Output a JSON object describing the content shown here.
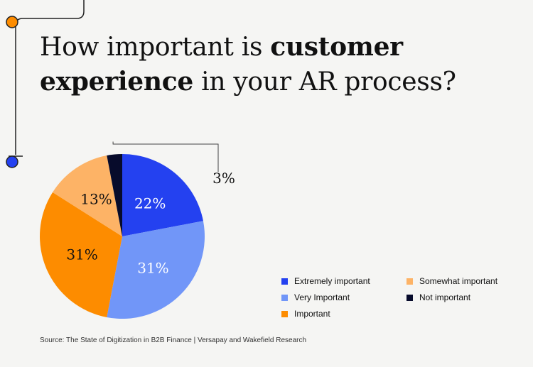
{
  "header": {
    "title_part1": "How important is",
    "title_bold1": "customer",
    "title_bold2": "experience",
    "title_part2": "in your AR process?"
  },
  "chart_data": {
    "type": "pie",
    "title": "How important is customer experience in your AR process?",
    "categories": [
      "Extremely important",
      "Very Important",
      "Important",
      "Somewhat important",
      "Not important"
    ],
    "values": [
      22,
      31,
      31,
      13,
      3
    ],
    "labels": [
      "22%",
      "31%",
      "31%",
      "13%",
      "3%"
    ],
    "colors": [
      "#2441f0",
      "#7196f8",
      "#fd8c00",
      "#fdb366",
      "#070b2b"
    ],
    "label_colors": [
      "#ffffff",
      "#ffffff",
      "#111111",
      "#111111",
      "#111111"
    ],
    "start_angle_deg": 0,
    "direction": "clockwise",
    "legend_position": "bottom-right"
  },
  "legend": {
    "items": [
      {
        "label": "Extremely important",
        "color": "#2441f0"
      },
      {
        "label": "Very Important",
        "color": "#7196f8"
      },
      {
        "label": "Important",
        "color": "#fd8c00"
      },
      {
        "label": "Somewhat important",
        "color": "#fdb366"
      },
      {
        "label": "Not important",
        "color": "#070b2b"
      }
    ]
  },
  "footer": {
    "source": "Source: The State of Digitization in B2B Finance | Versapay and Wakefield Research"
  },
  "decoration": {
    "line_color": "#222222",
    "dot_orange": "#fd8c00",
    "dot_blue": "#2441f0"
  }
}
